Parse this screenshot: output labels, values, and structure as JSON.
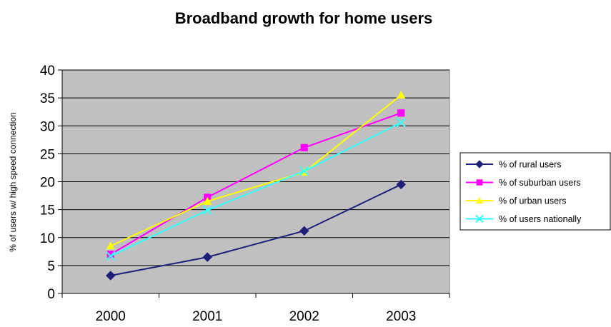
{
  "chart_data": {
    "type": "line",
    "title": "Broadband growth for home users",
    "xlabel": "",
    "ylabel": "% of users w/ high speed connection",
    "categories": [
      "2000",
      "2001",
      "2002",
      "2003"
    ],
    "ylim": [
      0,
      40
    ],
    "yticks": [
      0,
      5,
      10,
      15,
      20,
      25,
      30,
      35,
      40
    ],
    "grid": true,
    "legend": "right",
    "plot_background": "#c0c0c0",
    "series": [
      {
        "name": "% of rural users",
        "values": [
          3.2,
          6.5,
          11.2,
          19.5
        ],
        "color": "#1f1f7a",
        "marker": "diamond"
      },
      {
        "name": "% of suburban users",
        "values": [
          7.0,
          17.2,
          26.1,
          32.3
        ],
        "color": "#ff00ff",
        "marker": "square"
      },
      {
        "name": "% of urban users",
        "values": [
          8.5,
          16.5,
          21.7,
          35.5
        ],
        "color": "#ffff00",
        "marker": "triangle"
      },
      {
        "name": "% of users nationally",
        "values": [
          6.7,
          14.9,
          21.9,
          30.6
        ],
        "color": "#33ffff",
        "marker": "x"
      }
    ]
  }
}
